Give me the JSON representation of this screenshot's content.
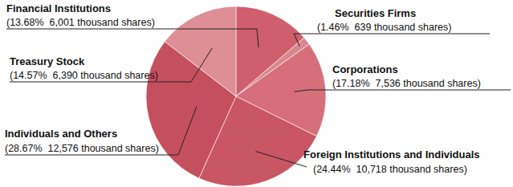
{
  "chart_data": {
    "type": "pie",
    "categories": [
      "Financial Institutions",
      "Securities Firms",
      "Corporations",
      "Foreign Institutions and Individuals",
      "Individuals and Others",
      "Treasury Stock"
    ],
    "values": [
      13.68,
      1.46,
      17.18,
      24.44,
      28.67,
      14.57
    ],
    "value_labels": [
      "(13.68%  6,001 thousand shares)",
      "(1.46%  639 thousand shares)",
      "(17.18%  7,536 thousand shares)",
      "(24.44%  10,718 thousand shares)",
      "(28.67%  12,576 thousand shares)",
      "(14.57%  6,390 thousand shares)"
    ],
    "colors": [
      "#cf5f6c",
      "#d98791",
      "#d66f7a",
      "#c95663",
      "#c5505d",
      "#dd8e97"
    ],
    "data_labels": true
  }
}
